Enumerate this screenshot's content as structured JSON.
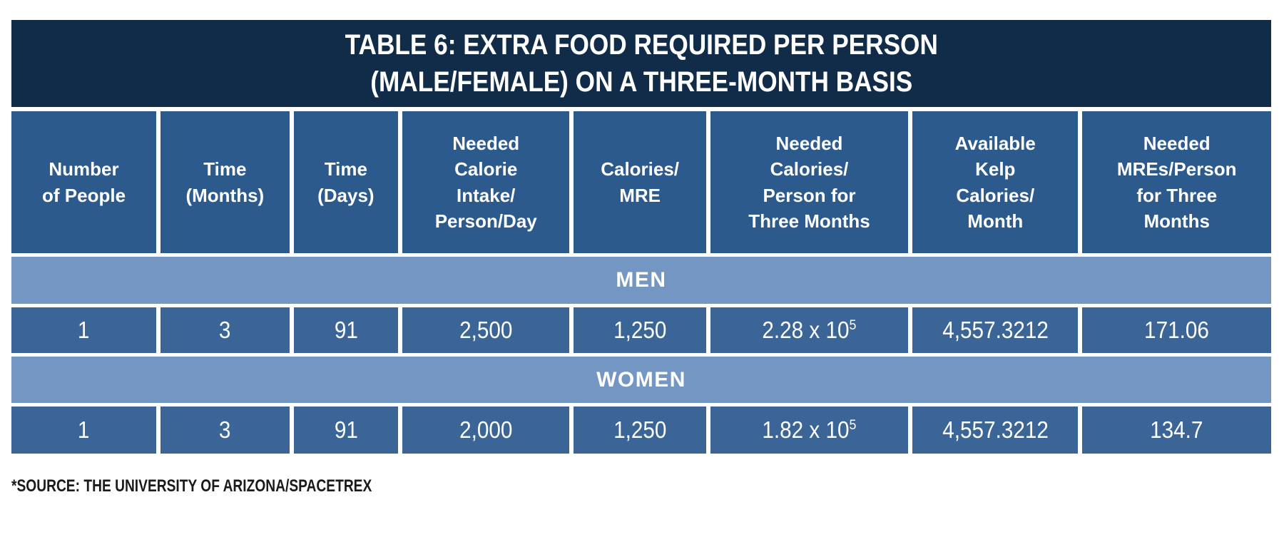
{
  "table": {
    "title": "TABLE 6: EXTRA FOOD REQUIRED PER PERSON\n(MALE/FEMALE) ON A THREE-MONTH BASIS",
    "columns": [
      "Number\nof People",
      "Time\n(Months)",
      "Time\n(Days)",
      "Needed\nCalorie\nIntake/\nPerson/Day",
      "Calories/\nMRE",
      "Needed\nCalories/\nPerson for\nThree Months",
      "Available\nKelp\nCalories/\nMonth",
      "Needed\nMREs/Person\nfor Three\nMonths"
    ],
    "sections": [
      {
        "label": "MEN",
        "cells": [
          "1",
          "3",
          "91",
          "2,500",
          "1,250",
          {
            "base": "2.28 x 10",
            "sup": "5"
          },
          "4,557.3212",
          "171.06"
        ]
      },
      {
        "label": "WOMEN",
        "cells": [
          "1",
          "3",
          "91",
          "2,000",
          "1,250",
          {
            "base": "1.82 x 10",
            "sup": "5"
          },
          "4,557.3212",
          "134.7"
        ]
      }
    ],
    "source_note": "*SOURCE: THE UNIVERSITY OF ARIZONA/SPACETREX",
    "colors": {
      "title_bar": "#112c48",
      "header_cell": "#2d5a8c",
      "section_banner": "#7396c2",
      "data_cell": "#3b6597",
      "cell_text": "#ffffff",
      "source_text": "#1a1a1a"
    }
  }
}
